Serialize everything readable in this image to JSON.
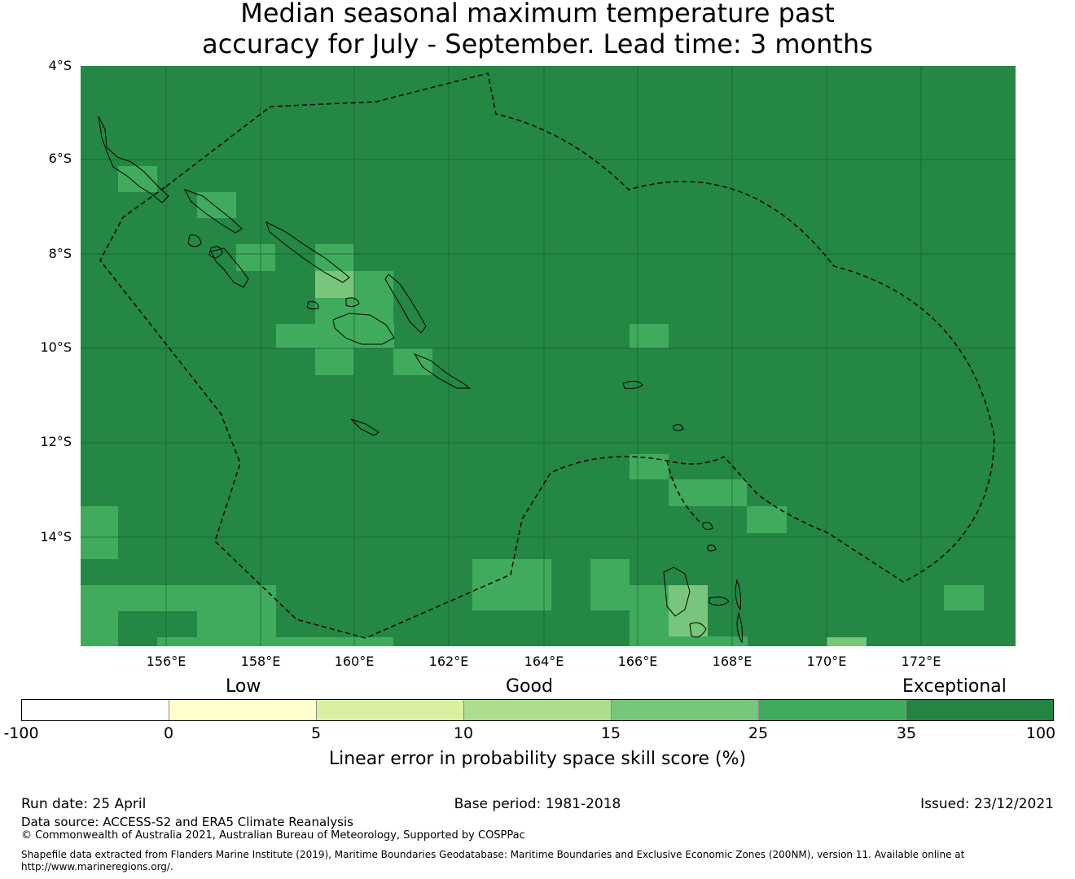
{
  "title": {
    "line1": "Median seasonal maximum temperature past",
    "line2": "accuracy for July - September. Lead time: 3 months"
  },
  "map": {
    "lat_labels": [
      "4°S",
      "6°S",
      "8°S",
      "10°S",
      "12°S",
      "14°S"
    ],
    "lon_labels": [
      "156°E",
      "158°E",
      "160°E",
      "162°E",
      "164°E",
      "166°E",
      "168°E",
      "170°E",
      "172°E"
    ],
    "background_color": "#248744",
    "gridline_color": "#155e2f",
    "coastline_color": "#000000",
    "eez_boundary_style": "dashed"
  },
  "colorbar": {
    "category_labels": [
      "Low",
      "Good",
      "Exceptional"
    ],
    "ticks": [
      "-100",
      "0",
      "5",
      "10",
      "15",
      "25",
      "35",
      "100"
    ],
    "colors": [
      "#ffffff",
      "#ffffcc",
      "#d9f0a3",
      "#addd8e",
      "#78c679",
      "#41ab5d",
      "#238443"
    ],
    "label": "Linear error in probability space skill score (%)"
  },
  "footer": {
    "run_date": "Run date: 25 April",
    "base_period": "Base period: 1981-2018",
    "issued": "Issued: 23/12/2021",
    "data_source": "Data source: ACCESS-S2 and ERA5 Climate Reanalysis",
    "copyright": "© Commonwealth of Australia 2021, Australian Bureau of Meteorology, Supported by COSPPac",
    "shapefile_line1": "Shapefile data extracted from Flanders Marine Institute (2019), Maritime Boundaries Geodatabase: Maritime Boundaries and Exclusive Economic Zones (200NM), version 11. Available online at",
    "shapefile_line2": "http://www.marineregions.org/."
  }
}
